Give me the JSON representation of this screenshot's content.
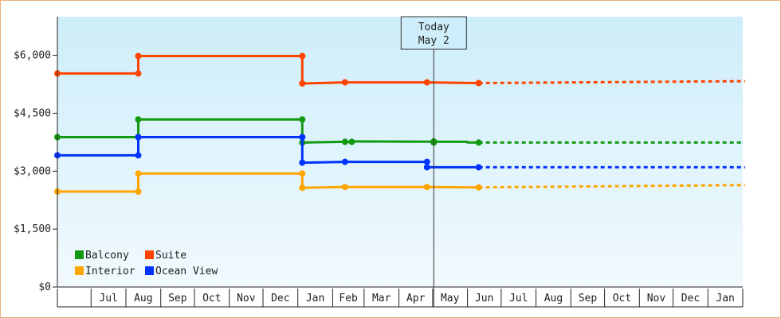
{
  "chart_data": {
    "type": "line",
    "style": "step",
    "ylim": [
      0,
      7000
    ],
    "yticks": [
      0,
      1500,
      3000,
      4500,
      6000
    ],
    "ytick_labels": [
      "$0",
      "$1,500",
      "$3,000",
      "$4,500",
      "$6,000"
    ],
    "months": [
      "",
      "Jul",
      "Aug",
      "Sep",
      "Oct",
      "Nov",
      "Dec",
      "Jan",
      "Feb",
      "Mar",
      "Apr",
      "May",
      "Jun",
      "Jul",
      "Aug",
      "Sep",
      "Oct",
      "Nov",
      "Dec",
      "Jan"
    ],
    "month_days": [
      30,
      31,
      31,
      30,
      31,
      30,
      31,
      31,
      28,
      31,
      30,
      31,
      30,
      31,
      31,
      30,
      31,
      30,
      31,
      31
    ],
    "x_start": "Jun 1",
    "x_end": "Jan 31",
    "today": {
      "label": "Today",
      "date": "May 2",
      "day": 335
    },
    "grid": false,
    "background": {
      "top": "#cdeefa",
      "bottom": "#f1f9fd"
    },
    "legend_position": "bottom-left",
    "series": [
      {
        "name": "Balcony",
        "color": "#119911",
        "history": [
          [
            0,
            3880
          ],
          [
            72,
            3880
          ],
          [
            72,
            4340
          ],
          [
            218,
            4340
          ],
          [
            218,
            3740
          ],
          [
            256,
            3760
          ],
          [
            262,
            3760
          ],
          [
            262,
            3770
          ],
          [
            365,
            3760
          ],
          [
            365,
            3740
          ],
          [
            375,
            3740
          ]
        ],
        "markers": [
          [
            0,
            3880
          ],
          [
            72,
            3880
          ],
          [
            72,
            4340
          ],
          [
            218,
            4340
          ],
          [
            218,
            3740
          ],
          [
            256,
            3760
          ],
          [
            262,
            3760
          ],
          [
            335,
            3770
          ],
          [
            335,
            3740
          ],
          [
            375,
            3740
          ]
        ],
        "forecast": [
          [
            375,
            3740
          ],
          [
            610,
            3740
          ]
        ]
      },
      {
        "name": "Suite",
        "color": "#ff4400",
        "history": [
          [
            0,
            5530
          ],
          [
            72,
            5530
          ],
          [
            72,
            5980
          ],
          [
            218,
            5980
          ],
          [
            218,
            5270
          ],
          [
            256,
            5300
          ],
          [
            329,
            5300
          ],
          [
            375,
            5280
          ]
        ],
        "markers": [
          [
            0,
            5530
          ],
          [
            72,
            5530
          ],
          [
            72,
            5980
          ],
          [
            218,
            5980
          ],
          [
            218,
            5270
          ],
          [
            256,
            5300
          ],
          [
            256,
            5300
          ],
          [
            329,
            5300
          ],
          [
            375,
            5280
          ]
        ],
        "forecast": [
          [
            375,
            5280
          ],
          [
            612,
            5330
          ]
        ]
      },
      {
        "name": "Interior",
        "color": "#ffa500",
        "history": [
          [
            0,
            2470
          ],
          [
            72,
            2470
          ],
          [
            72,
            2940
          ],
          [
            218,
            2940
          ],
          [
            218,
            2570
          ],
          [
            256,
            2590
          ],
          [
            329,
            2590
          ],
          [
            375,
            2580
          ]
        ],
        "markers": [
          [
            0,
            2470
          ],
          [
            72,
            2470
          ],
          [
            72,
            2940
          ],
          [
            218,
            2940
          ],
          [
            218,
            2570
          ],
          [
            256,
            2590
          ],
          [
            329,
            2590
          ],
          [
            375,
            2580
          ]
        ],
        "forecast": [
          [
            375,
            2580
          ],
          [
            612,
            2640
          ]
        ]
      },
      {
        "name": "Ocean View",
        "color": "#0033ff",
        "history": [
          [
            0,
            3410
          ],
          [
            72,
            3410
          ],
          [
            72,
            3880
          ],
          [
            218,
            3880
          ],
          [
            218,
            3220
          ],
          [
            256,
            3240
          ],
          [
            329,
            3240
          ],
          [
            329,
            3100
          ],
          [
            375,
            3100
          ]
        ],
        "markers": [
          [
            0,
            3410
          ],
          [
            72,
            3410
          ],
          [
            72,
            3880
          ],
          [
            218,
            3880
          ],
          [
            218,
            3220
          ],
          [
            256,
            3240
          ],
          [
            329,
            3240
          ],
          [
            329,
            3100
          ],
          [
            375,
            3100
          ]
        ],
        "forecast": [
          [
            375,
            3100
          ],
          [
            612,
            3100
          ]
        ]
      }
    ]
  }
}
